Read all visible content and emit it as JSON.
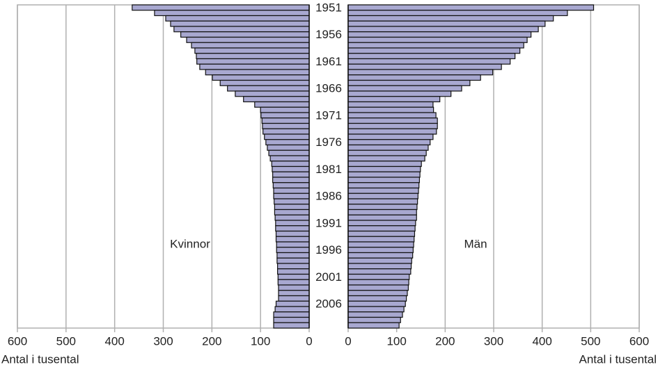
{
  "chart_data": {
    "type": "population-pyramid",
    "categories": [
      "1951",
      null,
      null,
      null,
      null,
      "1956",
      null,
      null,
      null,
      null,
      "1961",
      null,
      null,
      null,
      null,
      "1966",
      null,
      null,
      null,
      null,
      "1971",
      null,
      null,
      null,
      null,
      "1976",
      null,
      null,
      null,
      null,
      "1981",
      null,
      null,
      null,
      null,
      "1986",
      null,
      null,
      null,
      null,
      "1991",
      null,
      null,
      null,
      null,
      "1996",
      null,
      null,
      null,
      null,
      "2001",
      null,
      null,
      null,
      null,
      "2006",
      null,
      null,
      null,
      null
    ],
    "series": [
      {
        "name": "Kvinnor",
        "color": "#a8a8d0",
        "values": [
          364,
          318,
          295,
          285,
          278,
          264,
          252,
          242,
          235,
          232,
          231,
          225,
          213,
          199,
          183,
          168,
          152,
          135,
          112,
          100,
          99,
          97,
          96,
          95,
          92,
          89,
          86,
          83,
          80,
          77,
          76,
          75,
          75,
          74,
          73,
          73,
          72,
          71,
          71,
          70,
          69,
          69,
          68,
          68,
          67,
          67,
          66,
          66,
          65,
          65,
          64,
          64,
          63,
          63,
          63,
          68,
          70,
          73,
          73,
          73
        ]
      },
      {
        "name": "Män",
        "color": "#a8a8d0",
        "values": [
          506,
          452,
          423,
          406,
          392,
          377,
          369,
          362,
          354,
          344,
          334,
          316,
          298,
          273,
          251,
          234,
          212,
          189,
          175,
          176,
          181,
          184,
          184,
          182,
          175,
          169,
          165,
          161,
          158,
          151,
          149,
          148,
          147,
          146,
          145,
          144,
          143,
          142,
          141,
          141,
          139,
          138,
          137,
          136,
          135,
          134,
          133,
          131,
          130,
          129,
          126,
          125,
          124,
          122,
          120,
          118,
          115,
          112,
          108,
          105
        ]
      }
    ],
    "xlim": [
      0,
      600
    ],
    "xticks": [
      0,
      100,
      200,
      300,
      400,
      500,
      600
    ],
    "xlabel": "Antal i tusental",
    "grid": true
  }
}
